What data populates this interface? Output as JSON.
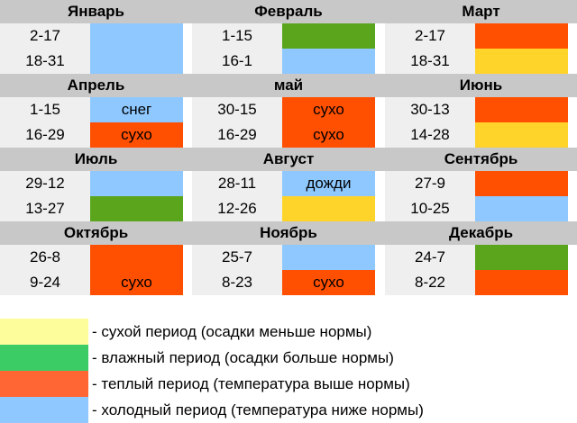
{
  "quarters": [
    {
      "months": [
        {
          "name": "Январь",
          "periods": [
            {
              "dates": "2-17",
              "label": "",
              "color": "blue"
            },
            {
              "dates": "18-31",
              "label": "",
              "color": "blue"
            }
          ]
        },
        {
          "name": "Февраль",
          "periods": [
            {
              "dates": "1-15",
              "label": "",
              "color": "green"
            },
            {
              "dates": "16-1",
              "label": "",
              "color": "blue"
            }
          ]
        },
        {
          "name": "Март",
          "periods": [
            {
              "dates": "2-17",
              "label": "",
              "color": "red"
            },
            {
              "dates": "18-31",
              "label": "",
              "color": "yellow"
            }
          ]
        }
      ]
    },
    {
      "months": [
        {
          "name": "Апрель",
          "periods": [
            {
              "dates": "1-15",
              "label": "снег",
              "color": "blue"
            },
            {
              "dates": "16-29",
              "label": "сухо",
              "color": "red"
            }
          ]
        },
        {
          "name": "май",
          "periods": [
            {
              "dates": "30-15",
              "label": "сухо",
              "color": "red"
            },
            {
              "dates": "16-29",
              "label": "сухо",
              "color": "red"
            }
          ]
        },
        {
          "name": "Июнь",
          "periods": [
            {
              "dates": "30-13",
              "label": "",
              "color": "red"
            },
            {
              "dates": "14-28",
              "label": "",
              "color": "yellow"
            }
          ]
        }
      ]
    },
    {
      "months": [
        {
          "name": "Июль",
          "periods": [
            {
              "dates": "29-12",
              "label": "",
              "color": "blue"
            },
            {
              "dates": "13-27",
              "label": "",
              "color": "green"
            }
          ]
        },
        {
          "name": "Август",
          "periods": [
            {
              "dates": "28-11",
              "label": "дожди",
              "color": "blue"
            },
            {
              "dates": "12-26",
              "label": "",
              "color": "yellow"
            }
          ]
        },
        {
          "name": "Сентябрь",
          "periods": [
            {
              "dates": "27-9",
              "label": "",
              "color": "red"
            },
            {
              "dates": "10-25",
              "label": "",
              "color": "blue"
            }
          ]
        }
      ]
    },
    {
      "months": [
        {
          "name": "Октябрь",
          "periods": [
            {
              "dates": "26-8",
              "label": "",
              "color": "red"
            },
            {
              "dates": "9-24",
              "label": "сухо",
              "color": "red"
            }
          ]
        },
        {
          "name": "Ноябрь",
          "periods": [
            {
              "dates": "25-7",
              "label": "",
              "color": "blue"
            },
            {
              "dates": "8-23",
              "label": "сухо",
              "color": "red"
            }
          ]
        },
        {
          "name": "Декабрь",
          "periods": [
            {
              "dates": "24-7",
              "label": "",
              "color": "green"
            },
            {
              "dates": "8-22",
              "label": "",
              "color": "red"
            }
          ]
        }
      ]
    }
  ],
  "legend": [
    {
      "color": "#fdfd9c",
      "text": "- сухой период (осадки меньше нормы)"
    },
    {
      "color": "#3ccc66",
      "text": "- влажный период (осадки больше нормы)"
    },
    {
      "color": "#ff6633",
      "text": "- теплый период (температура выше нормы)"
    },
    {
      "color": "#8ec8ff",
      "text": "- холодный период (температура ниже нормы)"
    }
  ],
  "palette": {
    "blue": "#8ec8ff",
    "green": "#5ba51c",
    "red": "#ff4f00",
    "yellow": "#ffd42a"
  }
}
